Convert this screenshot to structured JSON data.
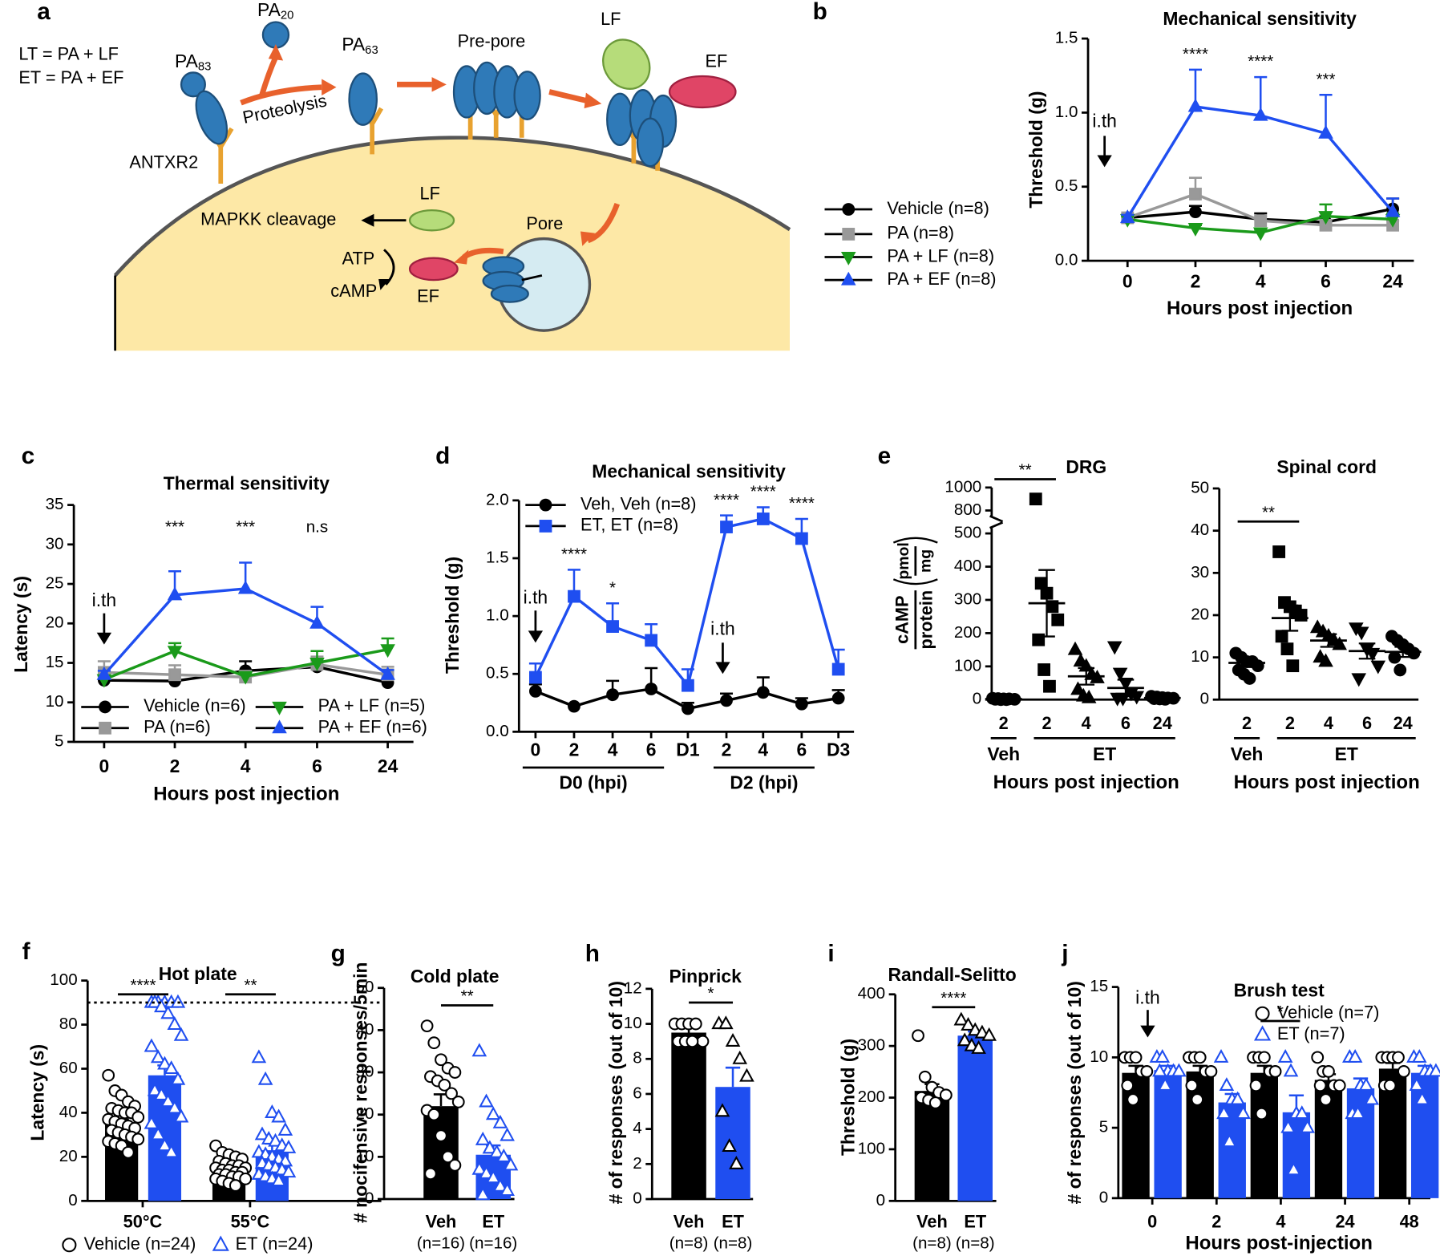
{
  "diagram": {
    "panel": "a",
    "equations": [
      "LT = PA + LF",
      "ET = PA + EF"
    ],
    "pa83": {
      "text": "PA",
      "sub": "83"
    },
    "pa20": {
      "text": "PA",
      "sub": "20"
    },
    "pa63": {
      "text": "PA",
      "sub": "63"
    },
    "proteolysis": "Proteolysis",
    "receptor": "ANTXR2",
    "prepore": "Pre-pore",
    "lf_top": "LF",
    "ef_top": "EF",
    "pore": "Pore",
    "mapkk": "MAPKK cleavage",
    "lf_inside": "LF",
    "atp": "ATP",
    "camp": "cAMP",
    "ef_inside": "EF"
  },
  "chart_data": [
    {
      "panel": "b",
      "type": "line",
      "title": "Mechanical sensitivity",
      "xlabel": "Hours post injection",
      "ylabel": "Threshold (g)",
      "categories": [
        "0",
        "2",
        "4",
        "6",
        "24"
      ],
      "ylim": [
        0,
        1.5
      ],
      "yticks": [
        {
          "value": 0,
          "label": "0.0"
        },
        0.5,
        {
          "value": 1,
          "label": "1.0"
        },
        1.5
      ],
      "series": [
        {
          "name": "Vehicle (n=8)",
          "color": "#000000",
          "marker": "circle",
          "values": [
            0.29,
            0.33,
            0.28,
            0.26,
            0.35
          ],
          "errors": [
            0.02,
            0.04,
            0.04,
            0.04,
            0.07
          ]
        },
        {
          "name": "PA (n=8)",
          "color": "#999999",
          "marker": "square",
          "values": [
            0.29,
            0.45,
            0.27,
            0.24,
            0.24
          ],
          "errors": [
            0.02,
            0.11,
            0.03,
            0.03,
            0.03
          ]
        },
        {
          "name": "PA + LF (n=8)",
          "color": "#1a9a1a",
          "marker": "triangle-down",
          "values": [
            0.28,
            0.22,
            0.19,
            0.3,
            0.28
          ],
          "errors": [
            0.02,
            0.02,
            0.02,
            0.08,
            0.04
          ]
        },
        {
          "name": "PA + EF (n=8)",
          "color": "#1f4ef0",
          "marker": "triangle",
          "values": [
            0.29,
            1.04,
            0.98,
            0.86,
            0.33
          ],
          "errors": [
            0.02,
            0.25,
            0.26,
            0.26,
            0.09
          ]
        }
      ],
      "significance": [
        null,
        "****",
        "****",
        "***",
        null
      ],
      "injection": [
        "i.th",
        null,
        null,
        null,
        null
      ]
    },
    {
      "panel": "c",
      "type": "line",
      "title": "Thermal sensitivity",
      "xlabel": "Hours post injection",
      "ylabel": "Latency (s)",
      "categories": [
        "0",
        "2",
        "4",
        "6",
        "24"
      ],
      "ylim": [
        5,
        35
      ],
      "yticks": [
        5,
        10,
        15,
        20,
        25,
        30,
        35
      ],
      "series": [
        {
          "name": "Vehicle (n=6)",
          "color": "#000000",
          "marker": "circle",
          "values": [
            12.8,
            12.7,
            14,
            14.5,
            12.5
          ],
          "errors": [
            0.5,
            0.8,
            1.2,
            0.8,
            0.5
          ]
        },
        {
          "name": "PA (n=6)",
          "color": "#999999",
          "marker": "square",
          "values": [
            13.8,
            13.5,
            13.2,
            14.8,
            13.5
          ],
          "errors": [
            1.4,
            1.2,
            0.8,
            1,
            1
          ]
        },
        {
          "name": "PA + LF (n=5)",
          "color": "#1a9a1a",
          "marker": "triangle-down",
          "values": [
            12.9,
            16.5,
            13.3,
            15,
            16.7
          ],
          "errors": [
            0.5,
            1,
            0.5,
            1.5,
            1.4
          ]
        },
        {
          "name": "PA + EF (n=6)",
          "color": "#1f4ef0",
          "marker": "triangle",
          "values": [
            13.5,
            23.6,
            24.4,
            20,
            13.5
          ],
          "errors": [
            0.5,
            3,
            3.3,
            2.1,
            0.6
          ]
        }
      ],
      "significance": [
        null,
        "***",
        "***",
        "n.s",
        null
      ],
      "injection": [
        "i.th",
        null,
        null,
        null,
        null
      ]
    },
    {
      "panel": "d",
      "type": "line",
      "title": "Mechanical sensitivity",
      "ylabel": "Threshold (g)",
      "categories": [
        "0",
        "2",
        "4",
        "6",
        "D1",
        "2",
        "4",
        "6",
        "D3"
      ],
      "ylim": [
        0,
        2
      ],
      "yticks": [
        {
          "value": 0,
          "label": "0.0"
        },
        0.5,
        {
          "value": 1,
          "label": "1.0"
        },
        1.5,
        {
          "value": 2,
          "label": "2.0"
        }
      ],
      "series": [
        {
          "name": "Veh, Veh (n=8)",
          "color": "#000000",
          "marker": "circle",
          "values": [
            0.35,
            0.22,
            0.32,
            0.37,
            0.2,
            0.27,
            0.34,
            0.24,
            0.29
          ],
          "errors": [
            0.06,
            0.01,
            0.12,
            0.18,
            0.05,
            0.06,
            0.13,
            0.05,
            0.07
          ]
        },
        {
          "name": "ET, ET (n=8)",
          "color": "#1f4ef0",
          "marker": "square",
          "values": [
            0.47,
            1.17,
            0.91,
            0.79,
            0.4,
            1.77,
            1.84,
            1.67,
            0.54
          ],
          "errors": [
            0.12,
            0.23,
            0.2,
            0.14,
            0.14,
            0.1,
            0.1,
            0.17,
            0.17
          ]
        }
      ],
      "significance": [
        null,
        "****",
        "*",
        null,
        null,
        "****",
        "****",
        "****",
        null
      ],
      "injection": [
        "i.th",
        null,
        null,
        null,
        null,
        "i.th",
        null,
        null,
        null
      ],
      "groups": [
        {
          "label": "D0 (hpi)",
          "span": [
            0,
            3
          ]
        },
        {
          "label": "D2 (hpi)",
          "span": [
            5,
            7
          ]
        }
      ]
    },
    {
      "panel": "e",
      "type": "scatter",
      "title": "DRG",
      "xlabel": "Hours post injection",
      "ylabel": {
        "top": "cAMP",
        "bottom": "protein",
        "unit_top": "pmol",
        "unit_bottom": "mg"
      },
      "categories": [
        "2",
        "2",
        "4",
        "6",
        "24"
      ],
      "ylim": [
        0,
        1000
      ],
      "axis_break": [
        500,
        800
      ],
      "yticks": [
        0,
        100,
        200,
        300,
        400,
        500,
        800,
        1000
      ],
      "markers": [
        "circle",
        "square",
        "triangle",
        "triangle-down",
        "circle"
      ],
      "points": [
        [
          4,
          3,
          2,
          2,
          1,
          1,
          0,
          0
        ],
        [
          900,
          350,
          320,
          280,
          240,
          180,
          90,
          40
        ],
        [
          150,
          115,
          100,
          75,
          65,
          30,
          10,
          5
        ],
        [
          160,
          80,
          50,
          20,
          10,
          5,
          5
        ],
        [
          10,
          8,
          6,
          5,
          4,
          3,
          2,
          1
        ]
      ],
      "means": [
        2,
        290,
        70,
        35,
        5
      ],
      "errors": [
        1,
        100,
        25,
        25,
        2
      ],
      "comparison": "**",
      "groups": [
        {
          "label": "Veh",
          "span": [
            0,
            0
          ]
        },
        {
          "label": "ET",
          "span": [
            1,
            4
          ]
        }
      ]
    },
    {
      "type": "scatter",
      "title": "Spinal cord",
      "xlabel": "Hours post injection",
      "categories": [
        "2",
        "2",
        "4",
        "6",
        "24"
      ],
      "ylim": [
        0,
        50
      ],
      "yticks": [
        0,
        10,
        20,
        30,
        40,
        50
      ],
      "markers": [
        "circle",
        "square",
        "triangle",
        "triangle-down",
        "circle"
      ],
      "points": [
        [
          11,
          10,
          9,
          9,
          8,
          7,
          6,
          5
        ],
        [
          35,
          23,
          22,
          21,
          20,
          15,
          12,
          8
        ],
        [
          17,
          16,
          15,
          14,
          13,
          10,
          9
        ],
        [
          17,
          16,
          12,
          11,
          8,
          5
        ],
        [
          15,
          14,
          13,
          12,
          11,
          10,
          7
        ]
      ],
      "means": [
        8.7,
        19.3,
        14,
        11.5,
        11.3
      ],
      "errors": [
        1,
        3,
        1.5,
        1.8,
        1.2
      ],
      "comparison": "**",
      "groups": [
        {
          "label": "Veh",
          "span": [
            0,
            0
          ]
        },
        {
          "label": "ET",
          "span": [
            1,
            4
          ]
        }
      ]
    },
    {
      "panel": "f",
      "type": "bar",
      "title": "Hot plate",
      "ylabel": "Latency (s)",
      "categories": [
        "50°C",
        "55°C"
      ],
      "ylim": [
        0,
        100
      ],
      "yticks": [
        0,
        20,
        40,
        60,
        80,
        100
      ],
      "cutoff": 90,
      "series": [
        {
          "name": "Vehicle (n=24)",
          "color": "#000000",
          "point_color": "#000000",
          "marker": "circle",
          "values": [
            35,
            15.5
          ],
          "errors": [
            2,
            1
          ],
          "points": [
            [
              57,
              50,
              48,
              45,
              43,
              42,
              41,
              40,
              40,
              38,
              37,
              36,
              35,
              34,
              33,
              32,
              31,
              30,
              29,
              28,
              27,
              26,
              25,
              22
            ],
            [
              25,
              22,
              21,
              20,
              19,
              18,
              17,
              16,
              16,
              15,
              15,
              14,
              14,
              13,
              13,
              12,
              12,
              11,
              11,
              10,
              10,
              9,
              8,
              7
            ]
          ]
        },
        {
          "name": "ET (n=24)",
          "color": "#1f4ef0",
          "point_color": "#1f4ef0",
          "marker": "triangle",
          "values": [
            57,
            23
          ],
          "errors": [
            4.5,
            3
          ],
          "points": [
            [
              90,
              90,
              90,
              90,
              90,
              90,
              88,
              85,
              80,
              75,
              70,
              65,
              62,
              60,
              55,
              50,
              48,
              45,
              42,
              38,
              35,
              30,
              25,
              22
            ],
            [
              65,
              55,
              40,
              38,
              32,
              30,
              28,
              27,
              25,
              24,
              22,
              21,
              20,
              19,
              18,
              17,
              16,
              15,
              14,
              13,
              12,
              11,
              10,
              9
            ]
          ]
        }
      ],
      "significance": [
        "****",
        "**"
      ]
    },
    {
      "panel": "g",
      "type": "bar",
      "title": "Cold plate",
      "ylabel": "# nocifensive responses/5min",
      "categories": [
        "Veh",
        "ET"
      ],
      "sample_sizes": [
        "(n=16)",
        "(n=16)"
      ],
      "ylim": [
        0,
        50
      ],
      "yticks": [
        0,
        10,
        20,
        30,
        40,
        50
      ],
      "values": [
        22,
        10.5
      ],
      "errors": [
        2.8,
        2.2
      ],
      "colors": [
        "#000000",
        "#1f4ef0"
      ],
      "point_colors": [
        "#000000",
        "#1f4ef0"
      ],
      "markers": [
        "circle",
        "triangle"
      ],
      "points": [
        [
          41,
          37,
          33,
          31,
          30,
          29,
          28,
          27,
          25,
          23,
          21,
          20,
          15,
          10,
          8,
          6
        ],
        [
          35,
          23,
          20,
          18,
          15,
          14,
          12,
          11,
          10,
          8,
          7,
          6,
          5,
          3,
          2,
          1
        ]
      ],
      "comparison": "**"
    },
    {
      "panel": "h",
      "type": "bar",
      "title": "Pinprick",
      "ylabel": "# of responses (out of 10)",
      "categories": [
        "Veh",
        "ET"
      ],
      "sample_sizes": [
        "(n=8)",
        "(n=8)"
      ],
      "ylim": [
        0,
        12
      ],
      "yticks": [
        0,
        2,
        4,
        6,
        8,
        10,
        12
      ],
      "values": [
        9.5,
        6.4
      ],
      "errors": [
        0.3,
        1.1
      ],
      "colors": [
        "#000000",
        "#1f4ef0"
      ],
      "point_colors": [
        "#000000",
        "#000000"
      ],
      "markers": [
        "circle",
        "triangle"
      ],
      "points": [
        [
          10,
          10,
          10,
          10,
          9,
          9,
          9,
          9
        ],
        [
          10,
          10,
          9,
          8,
          7,
          5,
          3,
          2
        ]
      ],
      "comparison": "*"
    },
    {
      "panel": "i",
      "type": "bar",
      "title": "Randall-Selitto",
      "ylabel": "Threshold (g)",
      "categories": [
        "Veh",
        "ET"
      ],
      "sample_sizes": [
        "(n=8)",
        "(n=8)"
      ],
      "ylim": [
        0,
        400
      ],
      "yticks": [
        0,
        100,
        200,
        300,
        400
      ],
      "values": [
        213,
        320
      ],
      "errors": [
        13,
        8
      ],
      "colors": [
        "#000000",
        "#1f4ef0"
      ],
      "point_colors": [
        "#000000",
        "#000000"
      ],
      "markers": [
        "circle",
        "triangle"
      ],
      "points": [
        [
          320,
          240,
          220,
          210,
          205,
          200,
          195,
          190
        ],
        [
          350,
          340,
          330,
          325,
          320,
          310,
          300,
          295
        ]
      ],
      "comparison": "****"
    },
    {
      "panel": "j",
      "type": "bar",
      "title": "Brush test",
      "xlabel": "Hours post-injection",
      "ylabel": "# of responses (out of 10)",
      "categories": [
        "0",
        "2",
        "4",
        "24",
        "48"
      ],
      "ylim": [
        0,
        15
      ],
      "yticks": [
        0,
        5,
        10,
        15
      ],
      "series": [
        {
          "name": "Vehicle (n=7)",
          "color": "#000000",
          "point_color": "#000000",
          "marker": "circle",
          "values": [
            8.9,
            9,
            8.9,
            8.4,
            9.2
          ],
          "errors": [
            0.5,
            0.4,
            0.5,
            0.4,
            0.4
          ],
          "points": [
            [
              10,
              10,
              10,
              9,
              9,
              8,
              7
            ],
            [
              10,
              10,
              10,
              9,
              9,
              8,
              7
            ],
            [
              10,
              10,
              10,
              9,
              9,
              8,
              6
            ],
            [
              10,
              9,
              9,
              8,
              8,
              8,
              7
            ],
            [
              10,
              10,
              10,
              10,
              9,
              8,
              8
            ]
          ]
        },
        {
          "name": "ET (n=7)",
          "color": "#1f4ef0",
          "point_color": "#1f4ef0",
          "marker": "triangle",
          "values": [
            9.1,
            6.8,
            6.1,
            7.8,
            8.9
          ],
          "errors": [
            0.3,
            0.6,
            1.2,
            0.7,
            0.5
          ],
          "points": [
            [
              10,
              10,
              9,
              9,
              9,
              9,
              8
            ],
            [
              10,
              8,
              7,
              7,
              6,
              6,
              4
            ],
            [
              10,
              9,
              6,
              6,
              5,
              5,
              2
            ],
            [
              10,
              10,
              8,
              8,
              7,
              6,
              6
            ],
            [
              10,
              10,
              9,
              9,
              9,
              8,
              7
            ]
          ]
        }
      ],
      "significance": [
        null,
        null,
        "*",
        null,
        null
      ],
      "injection": [
        "i.th",
        null,
        null,
        null,
        null
      ]
    }
  ]
}
